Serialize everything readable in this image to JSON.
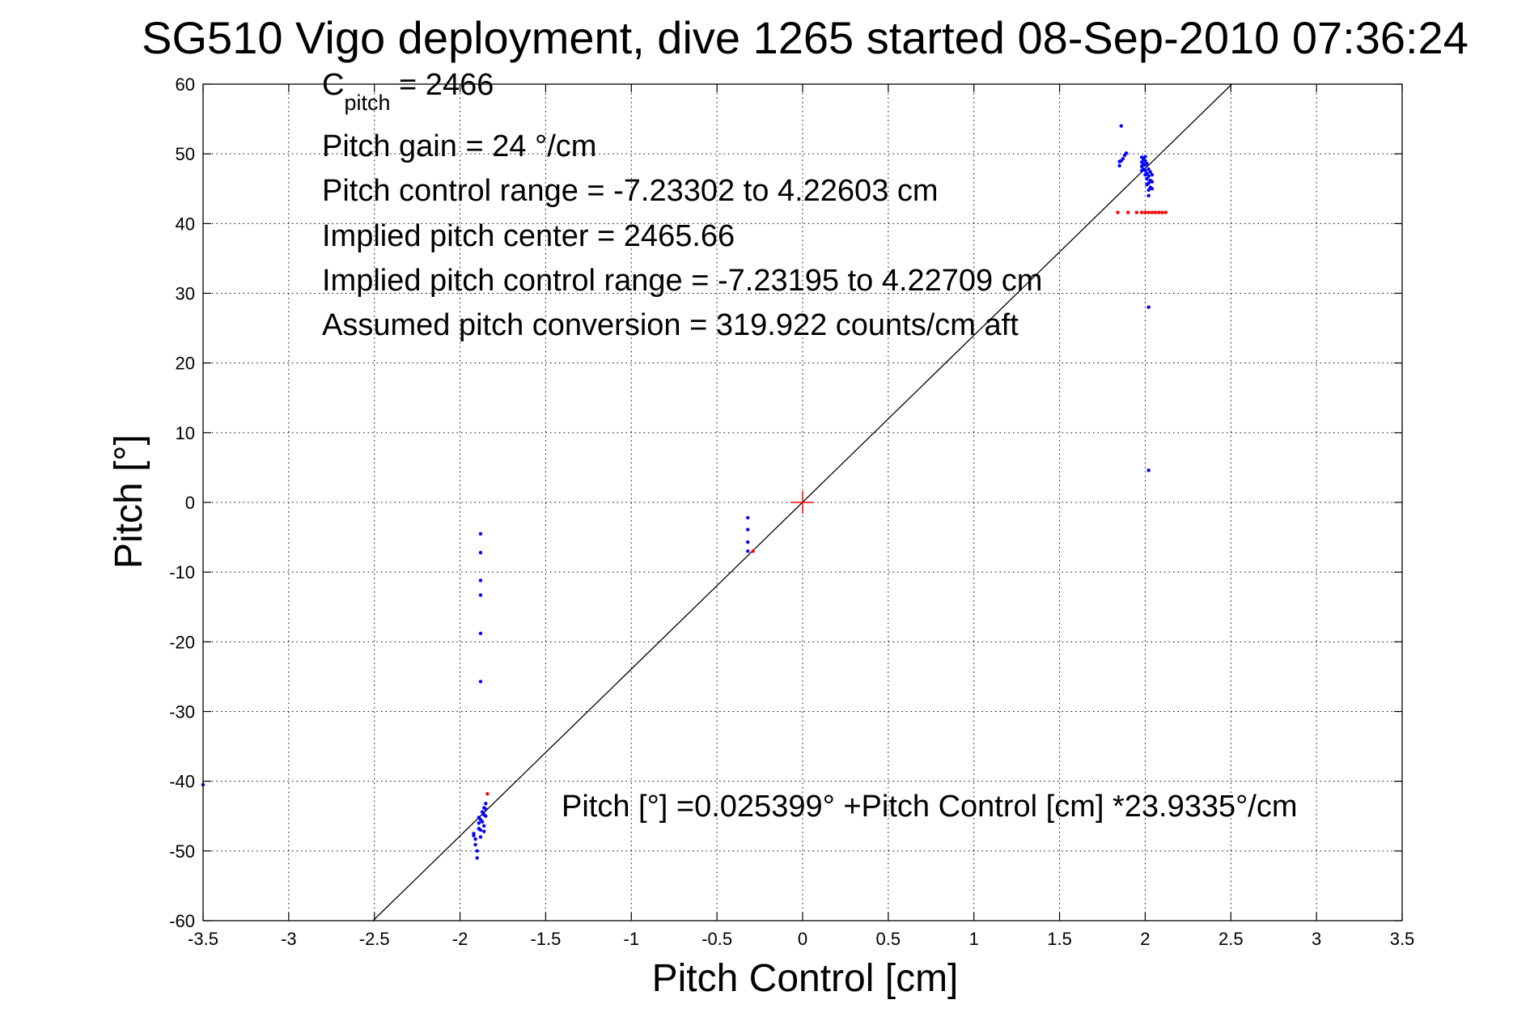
{
  "chart_data": {
    "type": "scatter",
    "title": "SG510 Vigo deployment, dive 1265 started 08-Sep-2010 07:36:24",
    "xlabel": "Pitch Control [cm]",
    "ylabel": "Pitch [°]",
    "xlim": [
      -3.5,
      3.5
    ],
    "ylim": [
      -60,
      60
    ],
    "grid": true,
    "xticks": [
      -3.5,
      -3,
      -2.5,
      -2,
      -1.5,
      -1,
      -0.5,
      0,
      0.5,
      1,
      1.5,
      2,
      2.5,
      3,
      3.5
    ],
    "xtick_labels": [
      "-3.5",
      "-3",
      "-2.5",
      "-2",
      "-1.5",
      "-1",
      "-0.5",
      "0",
      "0.5",
      "1",
      "1.5",
      "2",
      "2.5",
      "3",
      "3.5"
    ],
    "yticks": [
      -60,
      -50,
      -40,
      -30,
      -20,
      -10,
      0,
      10,
      20,
      30,
      40,
      50,
      60
    ],
    "ytick_labels": [
      "-60",
      "-50",
      "-40",
      "-30",
      "-20",
      "-10",
      "0",
      "10",
      "20",
      "30",
      "40",
      "50",
      "60"
    ],
    "annotations": {
      "c_pitch_main": "C",
      "c_pitch_sub": "pitch",
      "c_pitch_value": " = 2466",
      "line2": "Pitch gain = 24 °/cm",
      "line3": "Pitch control range = -7.23302 to 4.22603 cm",
      "line4": "Implied pitch center = 2465.66",
      "line5": "Implied pitch control range = -7.23195 to 4.22709 cm",
      "line6": "Assumed pitch conversion = 319.922 counts/cm aft",
      "fit_equation": "Pitch [°] =0.025399° +Pitch Control [cm] *23.9335°/cm"
    },
    "fit_line": {
      "intercept": 0.025399,
      "slope": 23.9335,
      "color": "#000000"
    },
    "center_marker": {
      "x": 0,
      "y": 0,
      "color": "#ff0000"
    },
    "series": [
      {
        "color": "#0000ff",
        "points": [
          [
            -3.5,
            -40.5
          ],
          [
            -1.88,
            -4.5
          ],
          [
            -1.88,
            -7.2
          ],
          [
            -1.88,
            -11.2
          ],
          [
            -1.88,
            -13.3
          ],
          [
            -1.88,
            -18.8
          ],
          [
            -1.88,
            -25.7
          ],
          [
            -1.92,
            -47.5
          ],
          [
            -1.91,
            -48.3
          ],
          [
            -1.91,
            -49.1
          ],
          [
            -1.9,
            -50.0
          ],
          [
            -1.9,
            -51.0
          ],
          [
            -1.92,
            -47.8
          ],
          [
            -1.89,
            -45.2
          ],
          [
            -1.89,
            -46.0
          ],
          [
            -1.89,
            -46.8
          ],
          [
            -1.88,
            -45.5
          ],
          [
            -1.88,
            -47.0
          ],
          [
            -1.88,
            -48.0
          ],
          [
            -1.87,
            -44.4
          ],
          [
            -1.87,
            -45.8
          ],
          [
            -1.86,
            -43.8
          ],
          [
            -1.86,
            -44.8
          ],
          [
            -1.86,
            -46.4
          ],
          [
            -1.86,
            -47.2
          ],
          [
            -1.85,
            -43.2
          ],
          [
            -1.85,
            -44.0
          ],
          [
            -1.85,
            -45.0
          ],
          [
            -0.32,
            -2.2
          ],
          [
            -0.32,
            -3.9
          ],
          [
            -0.32,
            -5.7
          ],
          [
            -0.32,
            -7.0
          ],
          [
            1.85,
            48.3
          ],
          [
            1.85,
            48.9
          ],
          [
            1.86,
            54.0
          ],
          [
            1.86,
            49.0
          ],
          [
            1.87,
            49.3
          ],
          [
            1.88,
            49.8
          ],
          [
            1.89,
            50.1
          ],
          [
            1.98,
            49.5
          ],
          [
            1.98,
            48.8
          ],
          [
            1.98,
            48.2
          ],
          [
            1.98,
            47.6
          ],
          [
            1.99,
            49.2
          ],
          [
            1.99,
            48.5
          ],
          [
            1.99,
            47.8
          ],
          [
            2.0,
            49.6
          ],
          [
            2.0,
            49.0
          ],
          [
            2.0,
            48.4
          ],
          [
            2.0,
            47.6
          ],
          [
            2.0,
            47.0
          ],
          [
            2.01,
            48.6
          ],
          [
            2.01,
            47.2
          ],
          [
            2.01,
            46.4
          ],
          [
            2.01,
            45.6
          ],
          [
            2.02,
            47.8
          ],
          [
            2.02,
            46.8
          ],
          [
            2.02,
            45.8
          ],
          [
            2.02,
            44.8
          ],
          [
            2.02,
            44.0
          ],
          [
            2.03,
            47.4
          ],
          [
            2.03,
            46.2
          ],
          [
            2.03,
            45.2
          ],
          [
            2.04,
            47.0
          ],
          [
            2.04,
            46.0
          ],
          [
            2.04,
            45.0
          ],
          [
            2.02,
            28.0
          ],
          [
            2.02,
            4.6
          ]
        ]
      },
      {
        "color": "#ff0000",
        "points": [
          [
            -1.84,
            -41.8
          ],
          [
            -0.29,
            -7.0
          ],
          [
            1.84,
            41.6
          ],
          [
            1.9,
            41.6
          ],
          [
            1.95,
            41.6
          ],
          [
            1.98,
            41.6
          ],
          [
            2.0,
            41.6
          ],
          [
            2.02,
            41.6
          ],
          [
            2.04,
            41.6
          ],
          [
            2.06,
            41.6
          ],
          [
            2.08,
            41.6
          ],
          [
            2.1,
            41.6
          ],
          [
            2.12,
            41.6
          ]
        ]
      }
    ]
  }
}
